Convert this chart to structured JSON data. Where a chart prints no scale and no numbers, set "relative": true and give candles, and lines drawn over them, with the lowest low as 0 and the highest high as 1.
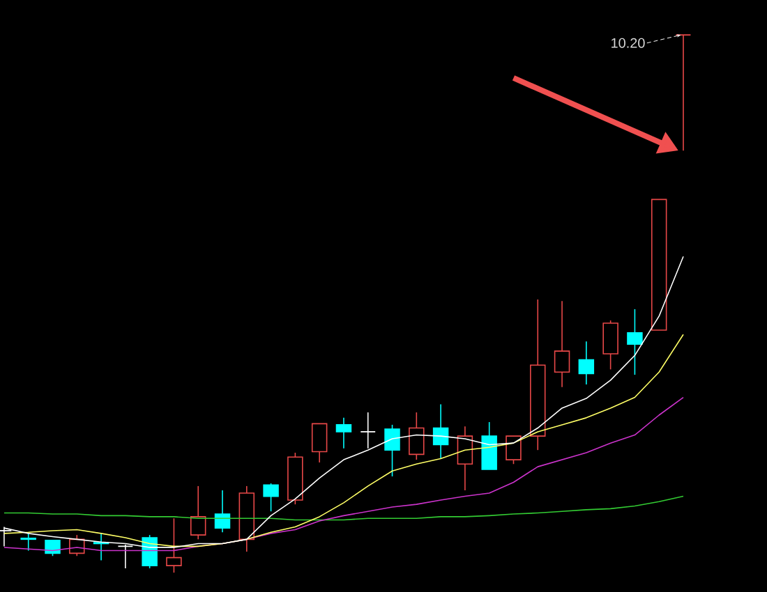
{
  "chart_data": {
    "type": "candlestick",
    "relative": true,
    "categories": [
      null,
      null,
      null,
      null,
      null,
      null,
      null,
      null,
      null,
      null,
      null,
      null,
      null,
      null,
      null,
      null,
      null,
      null,
      null,
      null,
      null,
      null,
      null,
      null,
      null,
      null,
      null,
      null,
      null
    ],
    "ohlc": [
      [
        0.078,
        0.085,
        0.049,
        0.078
      ],
      [
        0.064,
        0.073,
        0.041,
        0.062
      ],
      [
        0.06,
        0.06,
        0.031,
        0.036
      ],
      [
        0.036,
        0.07,
        0.031,
        0.062
      ],
      [
        0.056,
        0.073,
        0.023,
        0.054
      ],
      [
        0.049,
        0.052,
        0.008,
        0.049
      ],
      [
        0.065,
        0.07,
        0.008,
        0.013
      ],
      [
        0.013,
        0.101,
        0.0,
        0.028
      ],
      [
        0.07,
        0.161,
        0.062,
        0.104
      ],
      [
        0.109,
        0.153,
        0.075,
        0.083
      ],
      [
        0.062,
        0.161,
        0.039,
        0.148
      ],
      [
        0.163,
        0.166,
        0.114,
        0.142
      ],
      [
        0.135,
        0.223,
        0.127,
        0.215
      ],
      [
        0.225,
        0.277,
        0.205,
        0.277
      ],
      [
        0.275,
        0.288,
        0.231,
        0.262
      ],
      [
        0.262,
        0.298,
        0.231,
        0.262
      ],
      [
        0.267,
        0.275,
        0.179,
        0.228
      ],
      [
        0.22,
        0.298,
        0.21,
        0.269
      ],
      [
        0.269,
        0.313,
        0.212,
        0.238
      ],
      [
        0.202,
        0.272,
        0.153,
        0.254
      ],
      [
        0.254,
        0.28,
        0.192,
        0.192
      ],
      [
        0.21,
        0.254,
        0.202,
        0.254
      ],
      [
        0.254,
        0.508,
        0.228,
        0.386
      ],
      [
        0.373,
        0.505,
        0.345,
        0.412
      ],
      [
        0.396,
        0.43,
        0.35,
        0.37
      ],
      [
        0.407,
        0.469,
        0.378,
        0.464
      ],
      [
        0.446,
        0.49,
        0.368,
        0.425
      ],
      [
        0.451,
        0.694,
        0.451,
        0.694
      ],
      [
        1,
        1,
        0.785,
        1
      ]
    ],
    "colors": [
      "#ffffff",
      "#00ffff",
      "#00ffff",
      "#e84848",
      "#00ffff",
      "#ffffff",
      "#00ffff",
      "#e84848",
      "#e84848",
      "#00ffff",
      "#e84848",
      "#00ffff",
      "#e84848",
      "#e84848",
      "#00ffff",
      "#ffffff",
      "#00ffff",
      "#e84848",
      "#00ffff",
      "#e84848",
      "#00ffff",
      "#e84848",
      "#e84848",
      "#e84848",
      "#00ffff",
      "#e84848",
      "#00ffff",
      "#e84848",
      "#e84848"
    ],
    "series": [
      {
        "type": "line",
        "color": "#33cc33",
        "values": [
          0.111,
          0.111,
          0.109,
          0.109,
          0.106,
          0.106,
          0.104,
          0.104,
          0.101,
          0.101,
          0.101,
          0.101,
          0.098,
          0.098,
          0.098,
          0.101,
          0.101,
          0.101,
          0.104,
          0.104,
          0.106,
          0.109,
          0.111,
          0.114,
          0.117,
          0.119,
          0.124,
          0.132,
          0.142
        ]
      },
      {
        "type": "line",
        "color": "#cc33cc",
        "values": [
          0.047,
          0.044,
          0.041,
          0.047,
          0.041,
          0.041,
          0.041,
          0.041,
          0.049,
          0.054,
          0.062,
          0.073,
          0.08,
          0.096,
          0.106,
          0.114,
          0.122,
          0.127,
          0.135,
          0.142,
          0.148,
          0.168,
          0.197,
          0.21,
          0.223,
          0.241,
          0.256,
          0.293,
          0.326
        ]
      },
      {
        "type": "line",
        "color": "#ffff66",
        "values": [
          0.073,
          0.075,
          0.078,
          0.08,
          0.073,
          0.065,
          0.054,
          0.049,
          0.049,
          0.054,
          0.062,
          0.075,
          0.085,
          0.104,
          0.13,
          0.161,
          0.189,
          0.202,
          0.212,
          0.228,
          0.233,
          0.241,
          0.262,
          0.275,
          0.288,
          0.306,
          0.326,
          0.373,
          0.443
        ]
      },
      {
        "type": "line",
        "color": "#ffffff",
        "values": [
          0.083,
          0.073,
          0.067,
          0.062,
          0.057,
          0.054,
          0.047,
          0.047,
          0.054,
          0.054,
          0.062,
          0.106,
          0.137,
          0.176,
          0.21,
          0.228,
          0.249,
          0.256,
          0.254,
          0.249,
          0.238,
          0.241,
          0.269,
          0.306,
          0.324,
          0.358,
          0.404,
          0.477,
          0.588
        ]
      }
    ],
    "annotations": [
      "10.20"
    ]
  }
}
